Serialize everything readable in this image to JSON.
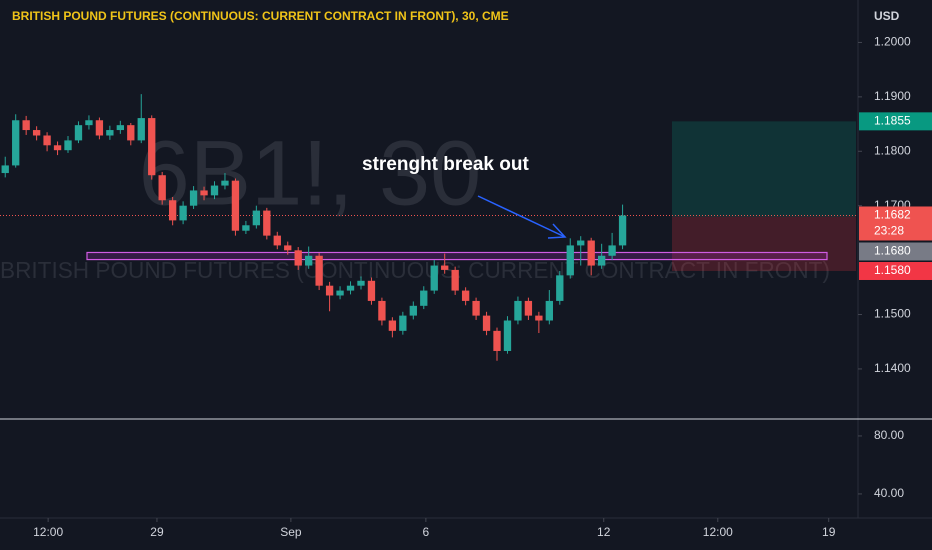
{
  "chart_data": {
    "type": "candlestick",
    "title": "BRITISH POUND FUTURES (CONTINUOUS: CURRENT CONTRACT IN FRONT), 30, CME",
    "currency": "USD",
    "watermark": "6B1!, 30",
    "watermark_subtitle": "BRITISH POUND FUTURES (CONTINUOUS: CURRENT CONTRACT IN FRONT)",
    "annotation": "strenght break out",
    "up_color": "#26a69a",
    "down_color": "#ef5350",
    "open": [
      1.176,
      1.1774,
      1.1857,
      1.1839,
      1.1829,
      1.1811,
      1.1802,
      1.182,
      1.1848,
      1.1857,
      1.1829,
      1.1839,
      1.1848,
      1.182,
      1.1861,
      1.1756,
      1.171,
      1.1673,
      1.17,
      1.1728,
      1.1719,
      1.1737,
      1.1746,
      1.1654,
      1.1664,
      1.1691,
      1.1645,
      1.1627,
      1.1618,
      1.159,
      1.1608,
      1.1553,
      1.1535,
      1.1544,
      1.1553,
      1.1562,
      1.1525,
      1.1489,
      1.147,
      1.1498,
      1.1516,
      1.1544,
      1.159,
      1.1582,
      1.1544,
      1.1525,
      1.1498,
      1.147,
      1.1433,
      1.1489,
      1.1525,
      1.1498,
      1.1489,
      1.1525,
      1.1572,
      1.1627,
      1.1636,
      1.159,
      1.1608,
      1.1627
    ],
    "high": [
      1.179,
      1.1868,
      1.1865,
      1.1846,
      1.1835,
      1.1818,
      1.1828,
      1.1855,
      1.1866,
      1.1862,
      1.1847,
      1.1856,
      1.1852,
      1.1905,
      1.1866,
      1.1762,
      1.1716,
      1.1708,
      1.1736,
      1.1735,
      1.1745,
      1.176,
      1.175,
      1.1672,
      1.17,
      1.1696,
      1.1652,
      1.1634,
      1.1624,
      1.1625,
      1.1613,
      1.156,
      1.1552,
      1.1561,
      1.157,
      1.1568,
      1.1531,
      1.1495,
      1.1505,
      1.1524,
      1.1552,
      1.16,
      1.1612,
      1.1588,
      1.155,
      1.1531,
      1.1505,
      1.1476,
      1.1497,
      1.1533,
      1.1531,
      1.1505,
      1.1545,
      1.158,
      1.164,
      1.1644,
      1.1641,
      1.163,
      1.165,
      1.1702
    ],
    "low": [
      1.1752,
      1.177,
      1.183,
      1.182,
      1.18,
      1.1793,
      1.1797,
      1.1815,
      1.184,
      1.1822,
      1.1821,
      1.1832,
      1.1811,
      1.1815,
      1.1748,
      1.1702,
      1.1664,
      1.1666,
      1.1694,
      1.171,
      1.1712,
      1.173,
      1.1645,
      1.1648,
      1.1658,
      1.1638,
      1.162,
      1.161,
      1.1582,
      1.1584,
      1.1545,
      1.1506,
      1.1528,
      1.1537,
      1.1546,
      1.1518,
      1.148,
      1.1458,
      1.1463,
      1.1491,
      1.151,
      1.1538,
      1.1575,
      1.1536,
      1.1517,
      1.149,
      1.1462,
      1.1415,
      1.1428,
      1.1482,
      1.149,
      1.1466,
      1.1482,
      1.1518,
      1.1566,
      1.159,
      1.1572,
      1.1584,
      1.16,
      1.162
    ],
    "close": [
      1.1774,
      1.1857,
      1.1839,
      1.1829,
      1.1811,
      1.1802,
      1.182,
      1.1848,
      1.1857,
      1.1829,
      1.1839,
      1.1848,
      1.182,
      1.1861,
      1.1756,
      1.171,
      1.1673,
      1.17,
      1.1728,
      1.1719,
      1.1737,
      1.1746,
      1.1654,
      1.1664,
      1.1691,
      1.1645,
      1.1627,
      1.1618,
      1.159,
      1.1608,
      1.1553,
      1.1535,
      1.1544,
      1.1553,
      1.1562,
      1.1525,
      1.1489,
      1.147,
      1.1498,
      1.1516,
      1.1544,
      1.159,
      1.1582,
      1.1544,
      1.1525,
      1.1498,
      1.147,
      1.1433,
      1.1489,
      1.1525,
      1.1498,
      1.1489,
      1.1525,
      1.1572,
      1.1627,
      1.1636,
      1.159,
      1.1608,
      1.1627,
      1.1682
    ],
    "xlim": [
      -0.5,
      81.5
    ],
    "xticks": [
      {
        "value": 4.1,
        "label": "12:00"
      },
      {
        "value": 14.5,
        "label": "29"
      },
      {
        "value": 27.3,
        "label": "Sep"
      },
      {
        "value": 40.2,
        "label": "6"
      },
      {
        "value": 57.2,
        "label": "12"
      },
      {
        "value": 68.1,
        "label": "12:00"
      },
      {
        "value": 78.7,
        "label": "19"
      }
    ],
    "ylim": [
      1.1308,
      1.2078
    ],
    "yticks": [
      {
        "value": 1.14,
        "label": "1.1400"
      },
      {
        "value": 1.15,
        "label": "1.1500"
      },
      {
        "value": 1.17,
        "label": "1.1700"
      },
      {
        "value": 1.18,
        "label": "1.1800"
      },
      {
        "value": 1.19,
        "label": "1.1900"
      },
      {
        "value": 1.2,
        "label": "1.2000"
      }
    ],
    "grid": false,
    "last_price": 1.1682,
    "countdown": "23:28",
    "zone": [
      1.1601,
      1.1614
    ],
    "position": {
      "take_profit": 1.1855,
      "entry": {
        "value": 1.168,
        "label": "1.1680"
      },
      "stop": {
        "value": 1.158,
        "label": "1.1580"
      }
    },
    "lower_pane": {
      "ylim": [
        23.4,
        91.0
      ],
      "yticks": [
        {
          "value": 40,
          "label": "40.00"
        },
        {
          "value": 80,
          "label": "80.00"
        }
      ]
    }
  }
}
